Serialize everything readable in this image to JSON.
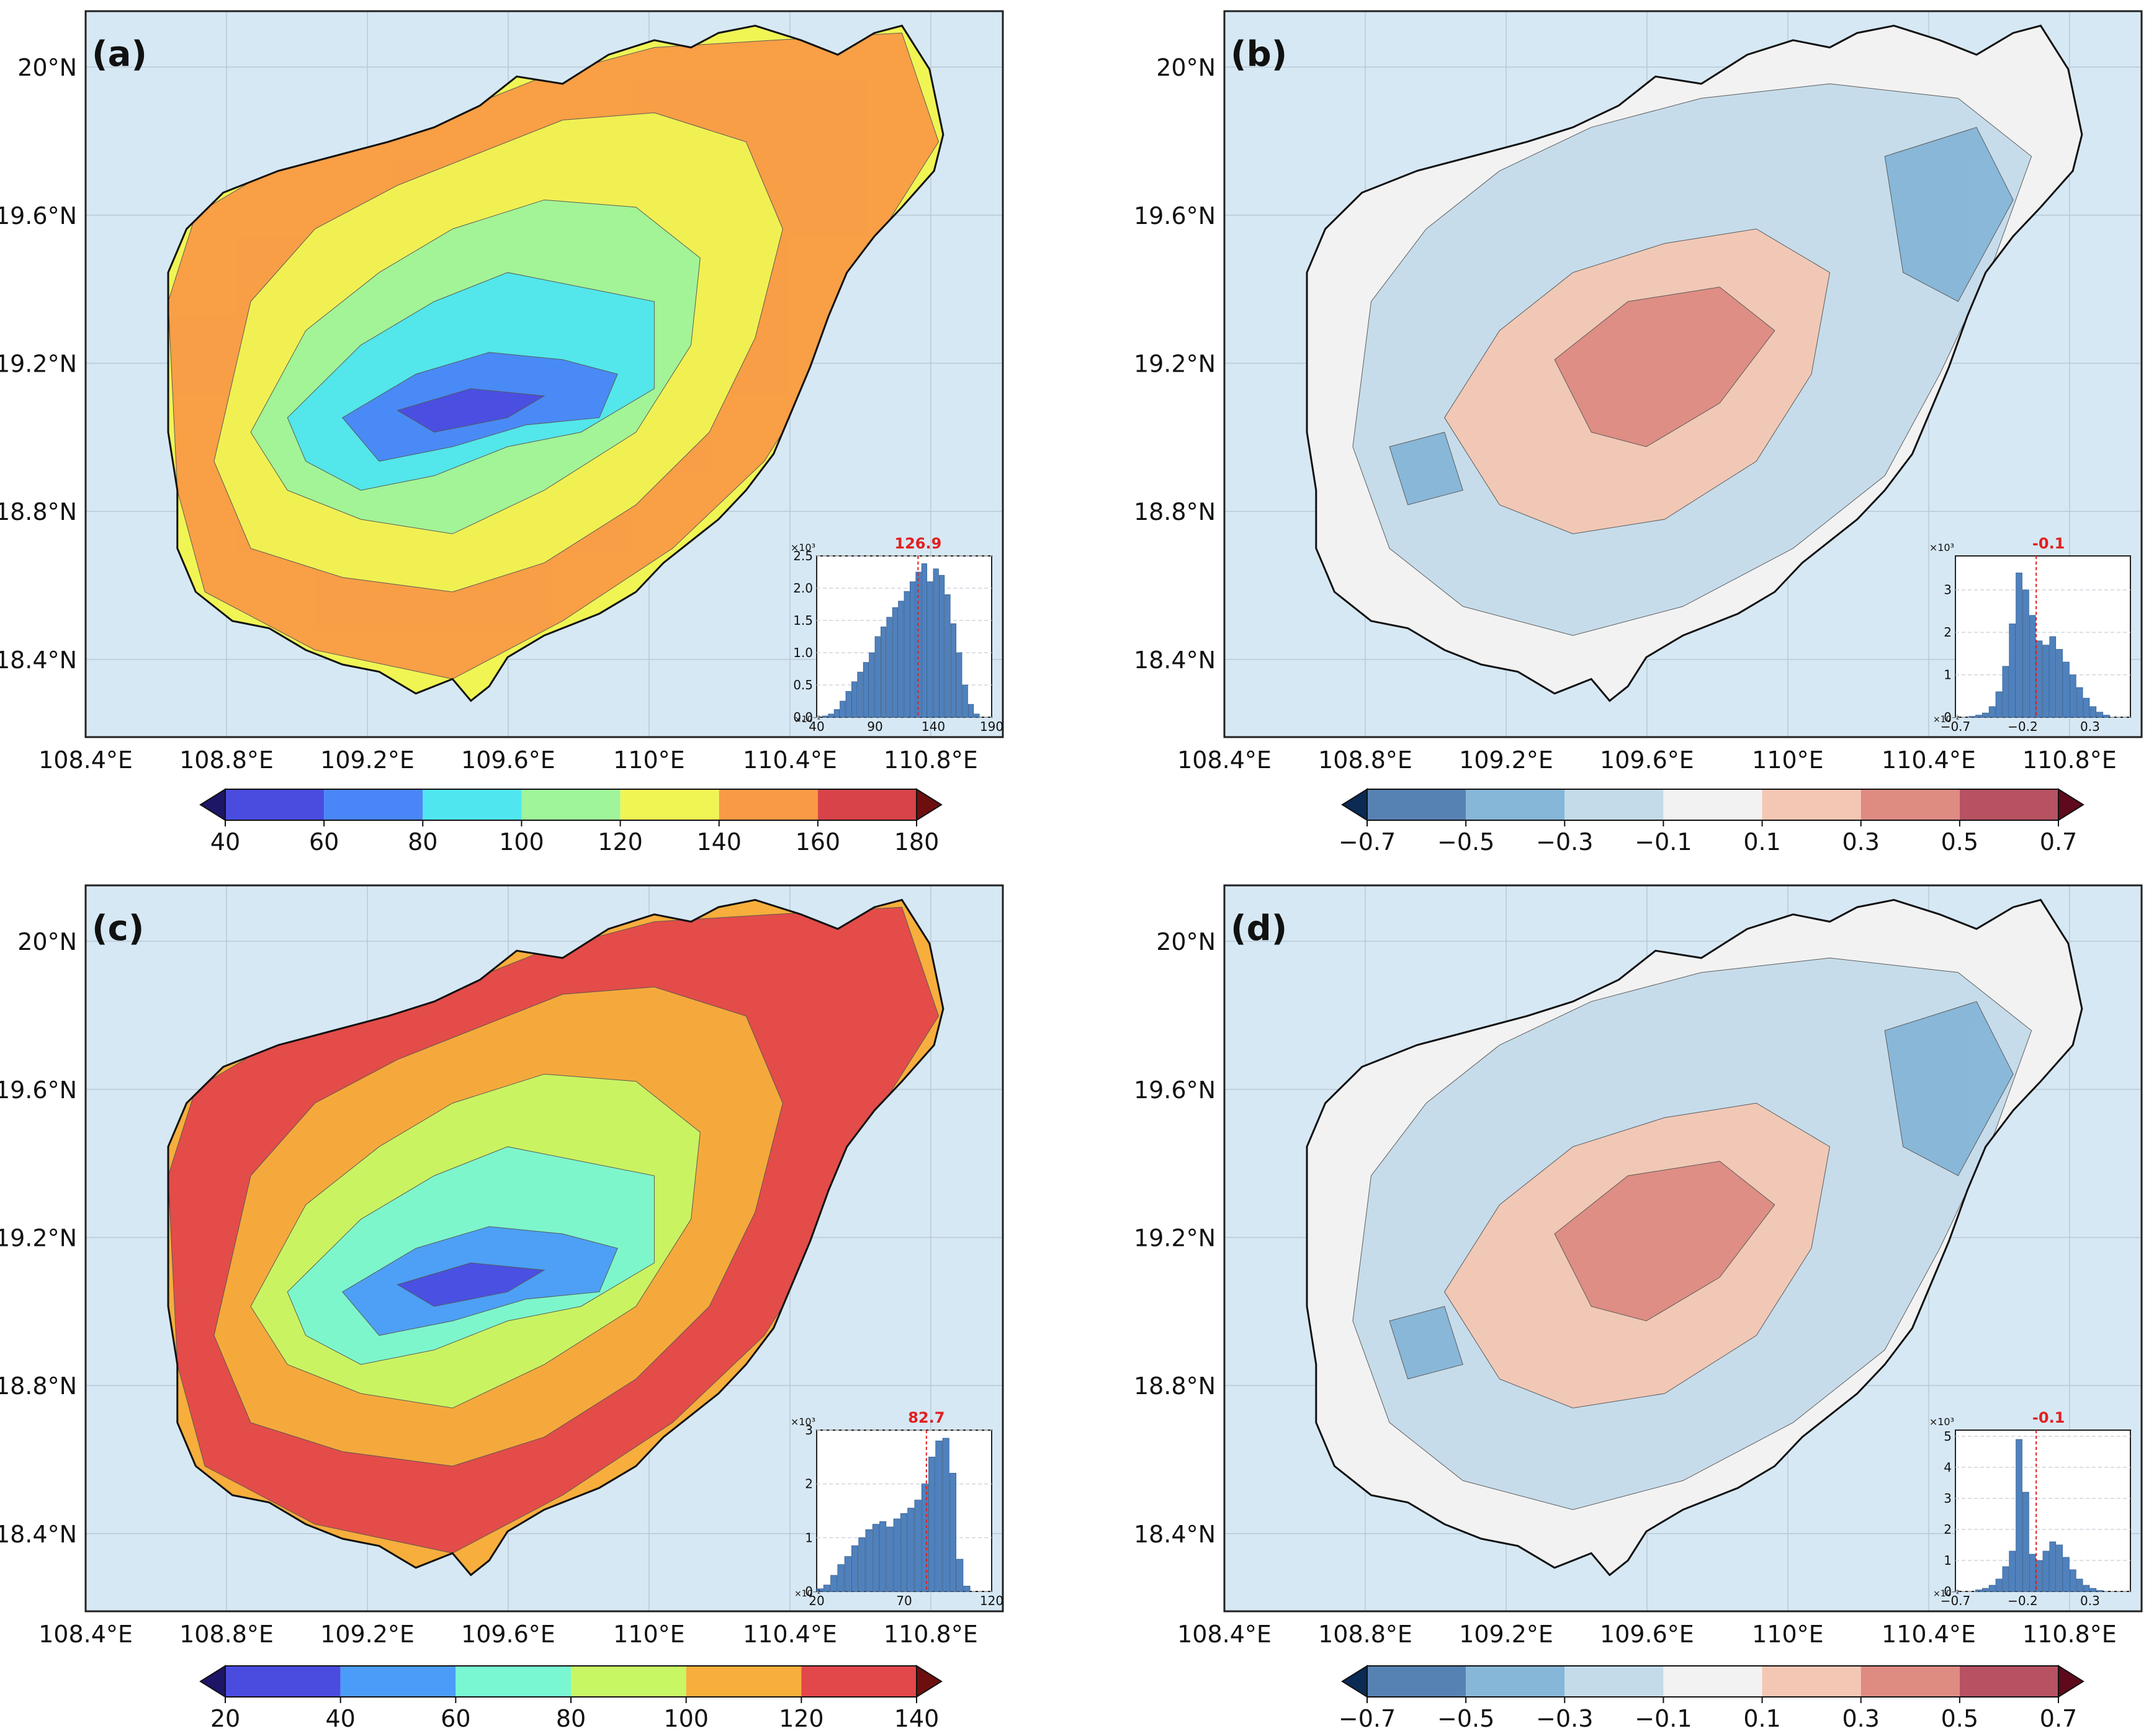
{
  "panels": [
    {
      "id": "a",
      "label": "(a)",
      "kind": "sequential",
      "lat_labels": [
        "20°N",
        "19.6°N",
        "19.2°N",
        "18.8°N",
        "18.4°N"
      ],
      "lon_labels": [
        "108.4°E",
        "108.8°E",
        "109.2°E",
        "109.6°E",
        "110°E",
        "110.4°E",
        "110.8°E"
      ],
      "colorbar": {
        "ticks": [
          "40",
          "60",
          "80",
          "100",
          "120",
          "140",
          "160",
          "180"
        ],
        "colors": [
          "#1d1566",
          "#4a4ce0",
          "#4a86f7",
          "#4fe6ef",
          "#9ef59a",
          "#f0f554",
          "#f99a46",
          "#d8434a",
          "#6d0f0f"
        ],
        "extend": "both"
      },
      "inset": {
        "mean_label": "126.9",
        "y_mult": "×10³",
        "x_mult": "×10⁻²",
        "y_ticks": [
          "0.0",
          "0.5",
          "1.0",
          "1.5",
          "2.0",
          "2.5"
        ],
        "x_ticks": [
          "40",
          "90",
          "140",
          "190"
        ],
        "x_range": [
          40,
          190
        ],
        "y_max": 2.5,
        "mean_value": 126.9,
        "bins_start": 40,
        "bins_width": 5,
        "counts": [
          0.0,
          0.02,
          0.05,
          0.12,
          0.25,
          0.4,
          0.55,
          0.7,
          0.85,
          1.0,
          1.25,
          1.4,
          1.55,
          1.7,
          1.8,
          1.95,
          2.1,
          2.25,
          2.38,
          2.1,
          2.3,
          2.2,
          1.9,
          1.45,
          1.0,
          0.5,
          0.2,
          0.05,
          0.0,
          0.0
        ]
      }
    },
    {
      "id": "b",
      "label": "(b)",
      "kind": "diverging",
      "lat_labels": [
        "20°N",
        "19.6°N",
        "19.2°N",
        "18.8°N",
        "18.4°N"
      ],
      "lon_labels": [
        "108.4°E",
        "108.8°E",
        "109.2°E",
        "109.6°E",
        "110°E",
        "110.4°E",
        "110.8°E"
      ],
      "colorbar": {
        "ticks": [
          "−0.7",
          "−0.5",
          "−0.3",
          "−0.1",
          "0.1",
          "0.3",
          "0.5",
          "0.7"
        ],
        "colors": [
          "#0b2a54",
          "#5682b3",
          "#86b6d8",
          "#c4dbea",
          "#f2f2f2",
          "#f4c7b4",
          "#de8b82",
          "#b65262",
          "#5e0a1c"
        ],
        "extend": "both"
      },
      "inset": {
        "mean_label": "-0.1",
        "y_mult": "×10³",
        "x_mult": "×10⁻²",
        "y_ticks": [
          "0",
          "1",
          "2",
          "3"
        ],
        "x_ticks": [
          "−0.7",
          "−0.2",
          "0.3"
        ],
        "x_range": [
          -0.7,
          0.6
        ],
        "y_max": 3.8,
        "mean_value": -0.1,
        "bins_start": -0.7,
        "bins_width": 0.05,
        "counts": [
          0.0,
          0.0,
          0.02,
          0.05,
          0.1,
          0.25,
          0.6,
          1.2,
          2.2,
          3.4,
          3.0,
          2.4,
          1.8,
          1.7,
          1.9,
          1.6,
          1.3,
          1.0,
          0.7,
          0.45,
          0.25,
          0.12,
          0.05,
          0.0,
          0.0,
          0.0
        ]
      }
    },
    {
      "id": "c",
      "label": "(c)",
      "kind": "sequential",
      "lat_labels": [
        "20°N",
        "19.6°N",
        "19.2°N",
        "18.8°N",
        "18.4°N"
      ],
      "lon_labels": [
        "108.4°E",
        "108.8°E",
        "109.2°E",
        "109.6°E",
        "110°E",
        "110.4°E",
        "110.8°E"
      ],
      "colorbar": {
        "ticks": [
          "20",
          "40",
          "60",
          "80",
          "100",
          "120",
          "140"
        ],
        "colors": [
          "#1d1566",
          "#4a4ce0",
          "#4b9cf8",
          "#79f7d2",
          "#c8f764",
          "#f7ae3c",
          "#e2474a",
          "#6d0f0f"
        ],
        "extend": "both"
      },
      "inset": {
        "mean_label": "82.7",
        "y_mult": "×10³",
        "x_mult": "×10⁻²",
        "y_ticks": [
          "0",
          "1",
          "2",
          "3"
        ],
        "x_ticks": [
          "20",
          "70",
          "120"
        ],
        "x_range": [
          20,
          120
        ],
        "y_max": 3.0,
        "mean_value": 82.7,
        "bins_start": 20,
        "bins_width": 4,
        "counts": [
          0.05,
          0.12,
          0.3,
          0.5,
          0.65,
          0.85,
          1.0,
          1.15,
          1.25,
          1.3,
          1.2,
          1.35,
          1.45,
          1.55,
          1.7,
          2.0,
          2.5,
          2.8,
          2.85,
          2.2,
          0.6,
          0.1,
          0.0,
          0.0,
          0.0
        ]
      }
    },
    {
      "id": "d",
      "label": "(d)",
      "kind": "diverging",
      "lat_labels": [
        "20°N",
        "19.6°N",
        "19.2°N",
        "18.8°N",
        "18.4°N"
      ],
      "lon_labels": [
        "108.4°E",
        "108.8°E",
        "109.2°E",
        "109.6°E",
        "110°E",
        "110.4°E",
        "110.8°E"
      ],
      "colorbar": {
        "ticks": [
          "−0.7",
          "−0.5",
          "−0.3",
          "−0.1",
          "0.1",
          "0.3",
          "0.5",
          "0.7"
        ],
        "colors": [
          "#0b2a54",
          "#5682b3",
          "#86b6d8",
          "#c4dbea",
          "#f2f2f2",
          "#f4c7b4",
          "#de8b82",
          "#b65262",
          "#5e0a1c"
        ],
        "extend": "both"
      },
      "inset": {
        "mean_label": "-0.1",
        "y_mult": "×10³",
        "x_mult": "×10⁻²",
        "y_ticks": [
          "0",
          "1",
          "2",
          "3",
          "4",
          "5"
        ],
        "x_ticks": [
          "−0.7",
          "−0.2",
          "0.3"
        ],
        "x_range": [
          -0.7,
          0.6
        ],
        "y_max": 5.2,
        "mean_value": -0.1,
        "bins_start": -0.7,
        "bins_width": 0.05,
        "counts": [
          0.0,
          0.0,
          0.0,
          0.05,
          0.1,
          0.2,
          0.4,
          0.8,
          1.3,
          4.9,
          3.2,
          1.2,
          1.0,
          1.3,
          1.6,
          1.5,
          1.1,
          0.7,
          0.4,
          0.2,
          0.1,
          0.03,
          0.0,
          0.0,
          0.0,
          0.0
        ]
      }
    }
  ]
}
